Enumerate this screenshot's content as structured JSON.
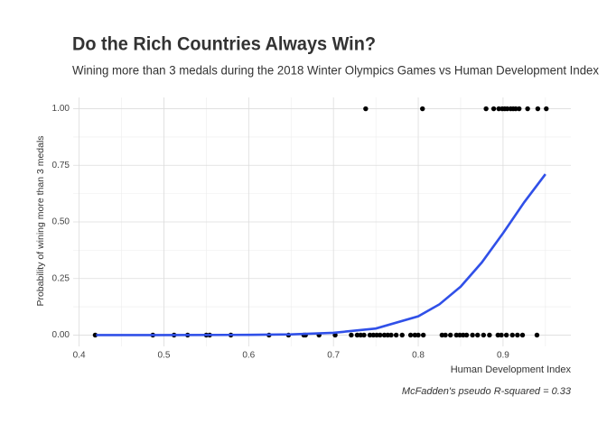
{
  "chart_data": {
    "type": "scatter",
    "title": "Do the Rich Countries Always Win?",
    "subtitle": "Wining more than 3 medals during the 2018 Winter Olympics Games vs Human Development Index",
    "x_label": "Human Development Index",
    "y_label": "Probability of wining more than 3 medals",
    "caption": "McFadden's pseudo R-squared = 0.33",
    "xlim": [
      0.393,
      0.98
    ],
    "ylim": [
      -0.05,
      1.05
    ],
    "xticks": [
      0.4,
      0.5,
      0.6,
      0.7,
      0.8,
      0.9
    ],
    "x_minor_ticks": [
      0.45,
      0.55,
      0.65,
      0.75,
      0.85,
      0.95
    ],
    "yticks": [
      {
        "value": 0,
        "label": "0.00"
      },
      {
        "value": 0.25,
        "label": "0.25"
      },
      {
        "value": 0.5,
        "label": "0.50"
      },
      {
        "value": 0.75,
        "label": "0.75"
      },
      {
        "value": 1,
        "label": "1.00"
      }
    ],
    "y_minor_ticks": [
      0.125,
      0.375,
      0.625,
      0.875
    ],
    "grid": true,
    "series": [
      {
        "kind": "points",
        "color": "#000000",
        "x": [
          0.738,
          0.805,
          0.88,
          0.889,
          0.895,
          0.899,
          0.902,
          0.905,
          0.909,
          0.912,
          0.915,
          0.919,
          0.929,
          0.941,
          0.951,
          0.419,
          0.487,
          0.512,
          0.528,
          0.55,
          0.554,
          0.579,
          0.624,
          0.647,
          0.665,
          0.667,
          0.683,
          0.702,
          0.721,
          0.728,
          0.732,
          0.736,
          0.743,
          0.747,
          0.751,
          0.755,
          0.76,
          0.764,
          0.768,
          0.774,
          0.781,
          0.791,
          0.796,
          0.8,
          0.806,
          0.828,
          0.832,
          0.838,
          0.845,
          0.849,
          0.853,
          0.857,
          0.864,
          0.87,
          0.877,
          0.884,
          0.894,
          0.898,
          0.904,
          0.911,
          0.917,
          0.923,
          0.94
        ],
        "values": [
          1,
          1,
          1,
          1,
          1,
          1,
          1,
          1,
          1,
          1,
          1,
          1,
          1,
          1,
          1,
          0,
          0,
          0,
          0,
          0,
          0,
          0,
          0,
          0,
          0,
          0,
          0,
          0,
          0,
          0,
          0,
          0,
          0,
          0,
          0,
          0,
          0,
          0,
          0,
          0,
          0,
          0,
          0,
          0,
          0,
          0,
          0,
          0,
          0,
          0,
          0,
          0,
          0,
          0,
          0,
          0,
          0,
          0,
          0,
          0,
          0,
          0,
          0
        ]
      },
      {
        "kind": "line",
        "color": "#3050e8",
        "x": [
          0.42,
          0.5,
          0.6,
          0.65,
          0.7,
          0.75,
          0.8,
          0.825,
          0.85,
          0.875,
          0.9,
          0.925,
          0.95
        ],
        "values": [
          0,
          0,
          0.001,
          0.003,
          0.01,
          0.029,
          0.083,
          0.136,
          0.214,
          0.321,
          0.45,
          0.587,
          0.711
        ]
      }
    ]
  }
}
